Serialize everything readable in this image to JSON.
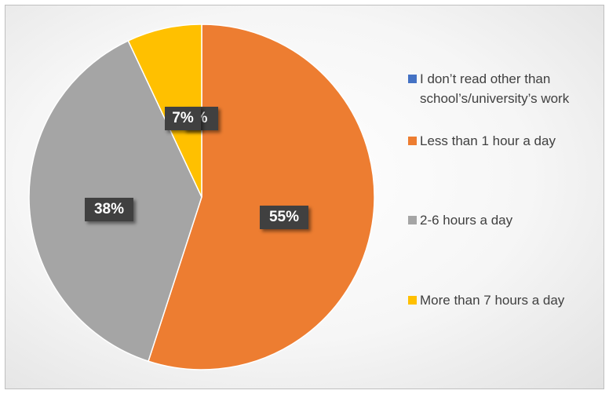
{
  "chart_data": {
    "type": "pie",
    "title": "",
    "slices": [
      {
        "label": "I don’t read other than school’s/university’s work",
        "value": 0,
        "display": "%",
        "color": "#4472C4"
      },
      {
        "label": "Less than 1 hour a day",
        "value": 55,
        "display": "55%",
        "color": "#ED7D31"
      },
      {
        "label": "2-6 hours a day",
        "value": 38,
        "display": "38%",
        "color": "#A5A5A5"
      },
      {
        "label": "More than 7 hours a day",
        "value": 7,
        "display": "7%",
        "color": "#FFC000"
      }
    ],
    "legend_position": "right"
  }
}
